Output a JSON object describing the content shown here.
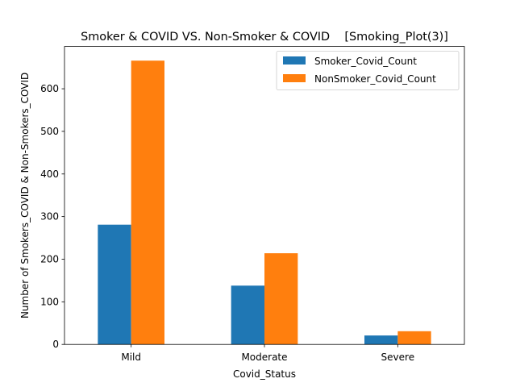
{
  "chart_data": {
    "type": "bar",
    "title": "Smoker & COVID VS. Non-Smoker & COVID    [Smoking_Plot(3)]",
    "xlabel": "Covid_Status",
    "ylabel": "Number of Smokers_COVID & Non-Smokers_COVID",
    "categories": [
      "Mild",
      "Moderate",
      "Severe"
    ],
    "series": [
      {
        "name": "Smoker_Covid_Count",
        "values": [
          281,
          138,
          21
        ],
        "color": "#1f77b4"
      },
      {
        "name": "NonSmoker_Covid_Count",
        "values": [
          666,
          214,
          31
        ],
        "color": "#ff7f0e"
      }
    ],
    "ylim": [
      0,
      699.3
    ],
    "yticks": [
      0,
      100,
      200,
      300,
      400,
      500,
      600
    ],
    "grid": false,
    "legend_position": "top-right"
  }
}
